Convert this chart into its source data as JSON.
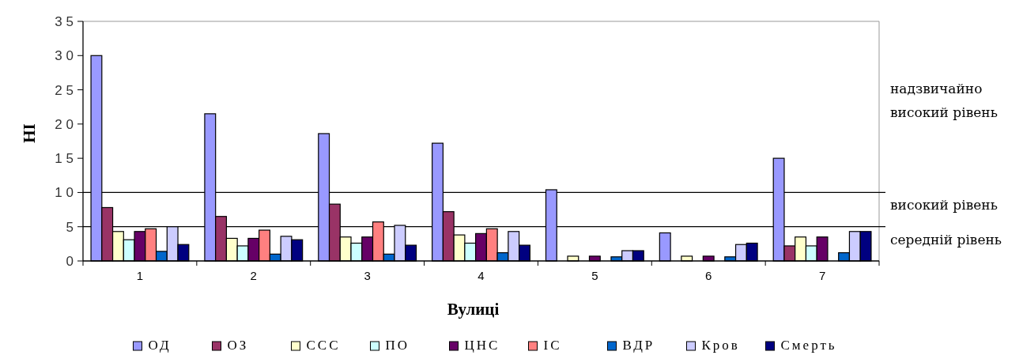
{
  "chart_data": {
    "type": "bar",
    "xlabel": "Вулиці",
    "ylabel": "НІ",
    "categories": [
      "1",
      "2",
      "3",
      "4",
      "5",
      "6",
      "7"
    ],
    "series": [
      {
        "name": "ОД",
        "color": "#9999ff",
        "values": [
          30,
          21.5,
          18.6,
          17.2,
          10.4,
          4.1,
          15
        ]
      },
      {
        "name": "ОЗ",
        "color": "#993366",
        "values": [
          7.8,
          6.5,
          8.3,
          7.2,
          0,
          0,
          2.2
        ]
      },
      {
        "name": "ССС",
        "color": "#ffffcc",
        "values": [
          4.3,
          3.3,
          3.5,
          3.8,
          0.7,
          0.7,
          3.5
        ]
      },
      {
        "name": "ПО",
        "color": "#ccffff",
        "values": [
          3.1,
          2.2,
          2.6,
          2.6,
          0,
          0,
          2.2
        ]
      },
      {
        "name": "ЦНС",
        "color": "#660066",
        "values": [
          4.3,
          3.3,
          3.5,
          4.0,
          0.7,
          0.7,
          3.5
        ]
      },
      {
        "name": "ІС",
        "color": "#ff8080",
        "values": [
          4.7,
          4.5,
          5.7,
          4.7,
          0,
          0,
          0
        ]
      },
      {
        "name": "ВДР",
        "color": "#0066cc",
        "values": [
          1.4,
          1.0,
          1.0,
          1.2,
          0.6,
          0.6,
          1.2
        ]
      },
      {
        "name": "Кров",
        "color": "#ccccff",
        "values": [
          5.0,
          3.6,
          5.2,
          4.3,
          1.5,
          2.4,
          4.3
        ]
      },
      {
        "name": "Смерть",
        "color": "#000080",
        "values": [
          2.4,
          3.1,
          2.3,
          2.3,
          1.5,
          2.6,
          4.3
        ]
      }
    ],
    "ylim": [
      0,
      35
    ],
    "yticks": [
      {
        "value": 0,
        "label": "0"
      },
      {
        "value": 5,
        "label": "5"
      },
      {
        "value": 10,
        "label": "1 0"
      },
      {
        "value": 15,
        "label": "1 5"
      },
      {
        "value": 20,
        "label": "2 0"
      },
      {
        "value": 25,
        "label": "2 5"
      },
      {
        "value": 30,
        "label": "3 0"
      },
      {
        "value": 35,
        "label": "3 5"
      }
    ],
    "ref_lines": [
      {
        "axis": "y",
        "value": 10,
        "label": "високий рівень",
        "color": "#000000"
      },
      {
        "axis": "y",
        "value": 5,
        "label": "середній рівень",
        "color": "#000000"
      }
    ],
    "annotations": [
      "надзвичайно високий рівень"
    ],
    "legend": "bottom",
    "grid": false
  }
}
